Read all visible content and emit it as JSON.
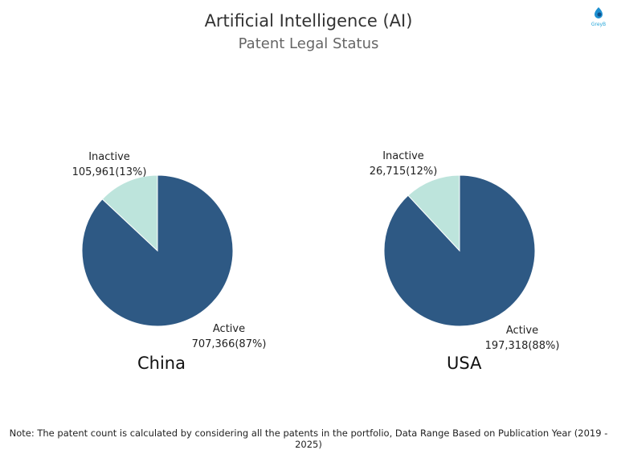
{
  "header": {
    "title": "Artificial Intelligence (AI)",
    "subtitle": "Patent Legal Status",
    "logo_text": "GreyB"
  },
  "chart_data": [
    {
      "type": "pie",
      "title": "China",
      "slices": [
        {
          "label": "Active",
          "value": 707366,
          "value_text": "707,366(87%)",
          "percent": 87,
          "color": "#2e5984"
        },
        {
          "label": "Inactive",
          "value": 105961,
          "value_text": "105,961(13%)",
          "percent": 13,
          "color": "#bde4dc"
        }
      ]
    },
    {
      "type": "pie",
      "title": "USA",
      "slices": [
        {
          "label": "Active",
          "value": 197318,
          "value_text": "197,318(88%)",
          "percent": 88,
          "color": "#2e5984"
        },
        {
          "label": "Inactive",
          "value": 26715,
          "value_text": "26,715(12%)",
          "percent": 12,
          "color": "#bde4dc"
        }
      ]
    }
  ],
  "footer": {
    "note": "Note: The patent count is calculated by considering all the patents in the portfolio, Data Range Based on Publication Year (2019 - 2025)"
  }
}
